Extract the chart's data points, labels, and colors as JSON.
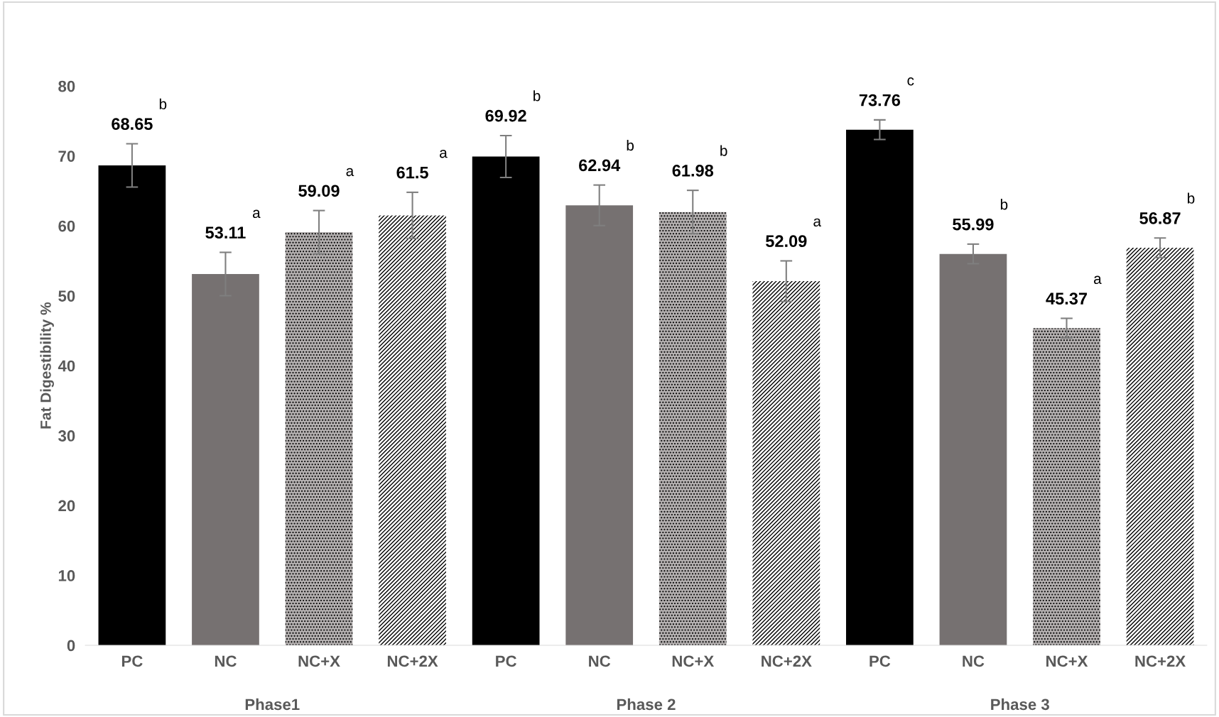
{
  "chart_data": {
    "type": "bar",
    "ylabel": "Fat Digestibility %",
    "categories": [
      "PC",
      "NC",
      "NC+X",
      "NC+2X",
      "PC",
      "NC",
      "NC+X",
      "NC+2X",
      "PC",
      "NC",
      "NC+X",
      "NC+2X"
    ],
    "values": [
      68.65,
      53.11,
      59.09,
      61.5,
      69.92,
      62.94,
      61.98,
      52.09,
      73.76,
      55.99,
      45.37,
      56.87
    ],
    "errors": [
      3.1,
      3.1,
      3.1,
      3.3,
      3.0,
      2.9,
      3.1,
      2.9,
      1.4,
      1.4,
      1.4,
      1.4
    ],
    "colors": [
      "#000000",
      "#767171",
      "#b4b0b0",
      "#808080",
      "#000000",
      "#767171",
      "#b4b0b0",
      "#808080",
      "#000000",
      "#767171",
      "#b4b0b0",
      "#808080"
    ],
    "data_labels": true,
    "ylim": [
      0,
      80
    ],
    "yticks": [
      0,
      10,
      20,
      30,
      40,
      50,
      60,
      70,
      80
    ],
    "grid": false,
    "annotations": [
      "b",
      "a",
      "a",
      "a",
      "b",
      "b",
      "b",
      "a",
      "c",
      "b",
      "a",
      "b",
      "Phase1",
      "Phase 2",
      "Phase 3"
    ]
  }
}
